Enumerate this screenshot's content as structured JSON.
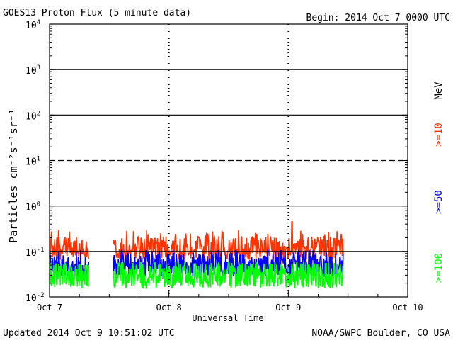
{
  "header": {
    "title": "GOES13 Proton Flux (5 minute data)",
    "begin": "Begin: 2014 Oct 7 0000 UTC"
  },
  "footer": {
    "updated": "Updated 2014 Oct  9 10:51:02 UTC",
    "credit": "NOAA/SWPC Boulder, CO USA"
  },
  "chart_data": {
    "type": "line",
    "title": "GOES13 Proton Flux (5 minute data)",
    "xlabel": "Universal Time",
    "ylabel": "Particles cm⁻²s⁻¹sr⁻¹",
    "yscale": "log",
    "ylim": [
      0.01,
      10000
    ],
    "xlim_days": [
      0,
      3
    ],
    "x_ticks": [
      {
        "day": 0,
        "label": "Oct 7"
      },
      {
        "day": 1,
        "label": "Oct 8"
      },
      {
        "day": 2,
        "label": "Oct 9"
      },
      {
        "day": 3,
        "label": "Oct 10"
      }
    ],
    "y_ticks": [
      {
        "value": 0.01,
        "base": "10",
        "exp": "-2"
      },
      {
        "value": 0.1,
        "base": "10",
        "exp": "-1"
      },
      {
        "value": 1,
        "base": "10",
        "exp": "0"
      },
      {
        "value": 10,
        "base": "10",
        "exp": "1"
      },
      {
        "value": 100,
        "base": "10",
        "exp": "2"
      },
      {
        "value": 1000,
        "base": "10",
        "exp": "3"
      },
      {
        "value": 10000,
        "base": "10",
        "exp": "4"
      }
    ],
    "thresholds": [
      {
        "value": 0.1,
        "style": "solid"
      },
      {
        "value": 1,
        "style": "solid"
      },
      {
        "value": 10,
        "style": "dashed"
      },
      {
        "value": 100,
        "style": "solid"
      },
      {
        "value": 1000,
        "style": "solid"
      }
    ],
    "grid": "day-dividers",
    "legend_position": "right",
    "legend_unit": "MeV",
    "gaps_days": [
      [
        0.33,
        0.53
      ]
    ],
    "data_end_day": 2.46,
    "series": [
      {
        "name": ">=10",
        "color": "#ff3300",
        "typical": 0.12,
        "min": 0.08,
        "max": 0.3,
        "spike": {
          "day": 2.03,
          "value": 0.45
        }
      },
      {
        "name": ">=50",
        "color": "#0000ff",
        "typical": 0.05,
        "min": 0.03,
        "max": 0.11
      },
      {
        "name": ">=100",
        "color": "#00ff00",
        "typical": 0.03,
        "min": 0.015,
        "max": 0.06
      }
    ]
  }
}
